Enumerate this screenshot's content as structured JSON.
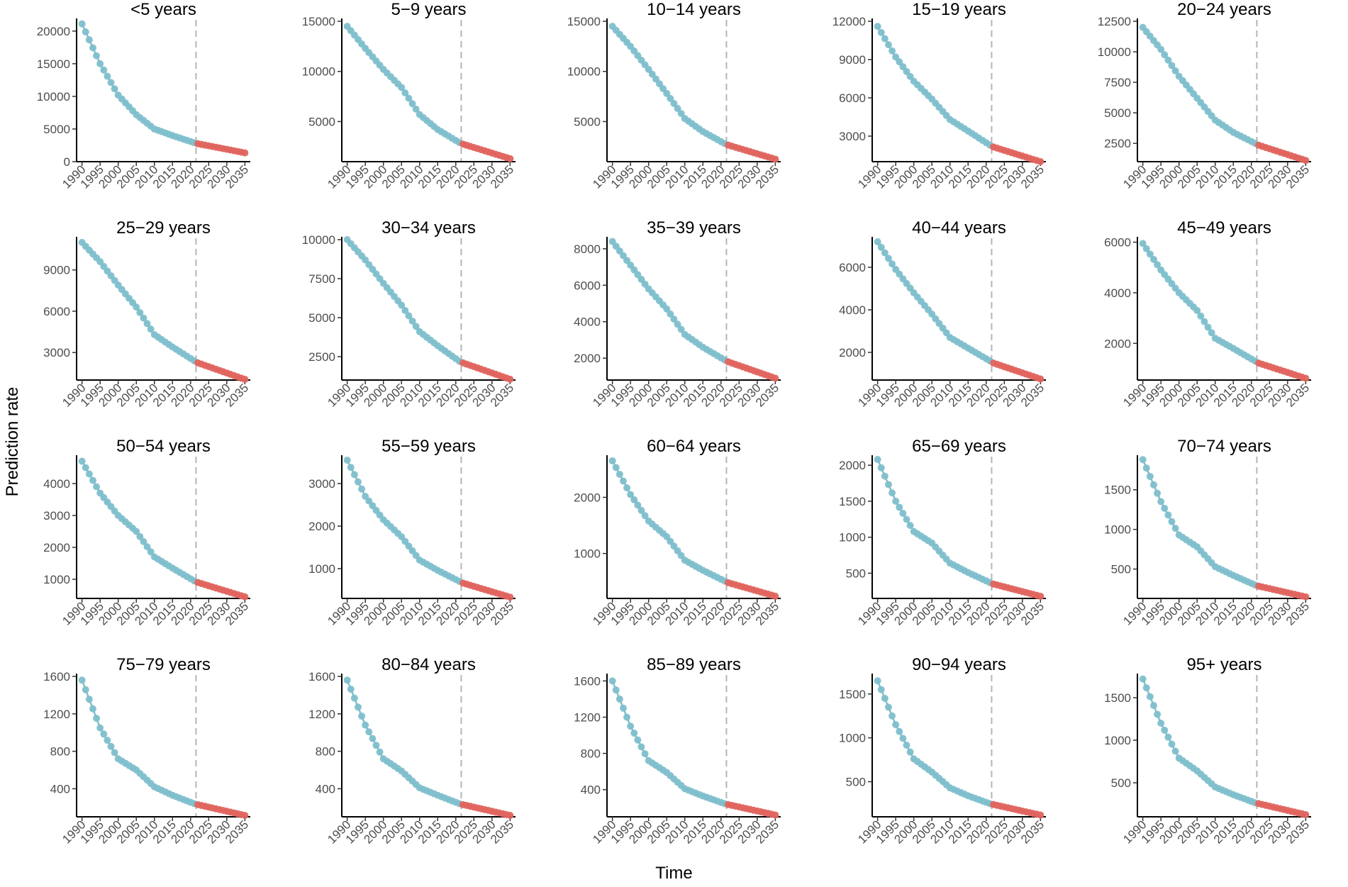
{
  "figure": {
    "ylabel": "Prediction rate",
    "xlabel": "Time",
    "colors": {
      "observed": "#7fbfcc",
      "predicted": "#e0645e",
      "reference_line": "#b5b5b5",
      "axis": "#000000"
    },
    "x_ticks": [
      1990,
      1995,
      2000,
      2005,
      2010,
      2015,
      2020,
      2025,
      2030,
      2035
    ],
    "reference_year": 2021.5
  },
  "chart_data": [
    {
      "type": "scatter",
      "title": "<5 years",
      "ylim": [
        0,
        21500
      ],
      "yticks": [
        0,
        5000,
        10000,
        15000,
        20000
      ],
      "observed_end": 2021,
      "predicted_end": 2035,
      "anchors": [
        [
          1990,
          21100
        ],
        [
          1995,
          15000
        ],
        [
          2000,
          10200
        ],
        [
          2005,
          7200
        ],
        [
          2010,
          5000
        ],
        [
          2015,
          4000
        ],
        [
          2021,
          2900
        ],
        [
          2022,
          2750
        ],
        [
          2035,
          1350
        ]
      ]
    },
    {
      "type": "scatter",
      "title": "5−9 years",
      "ylim": [
        1000,
        15000
      ],
      "yticks": [
        5000,
        10000,
        15000
      ],
      "observed_end": 2021,
      "predicted_end": 2035,
      "anchors": [
        [
          1990,
          14500
        ],
        [
          1995,
          12300
        ],
        [
          2000,
          10200
        ],
        [
          2005,
          8400
        ],
        [
          2010,
          5700
        ],
        [
          2015,
          4200
        ],
        [
          2021,
          2900
        ],
        [
          2022,
          2750
        ],
        [
          2035,
          1300
        ]
      ]
    },
    {
      "type": "scatter",
      "title": "10−14 years",
      "ylim": [
        1000,
        15000
      ],
      "yticks": [
        5000,
        10000,
        15000
      ],
      "observed_end": 2021,
      "predicted_end": 2035,
      "anchors": [
        [
          1990,
          14500
        ],
        [
          1995,
          12500
        ],
        [
          2000,
          10200
        ],
        [
          2005,
          7800
        ],
        [
          2010,
          5300
        ],
        [
          2015,
          4000
        ],
        [
          2021,
          2800
        ],
        [
          2022,
          2650
        ],
        [
          2035,
          1250
        ]
      ]
    },
    {
      "type": "scatter",
      "title": "15−19 years",
      "ylim": [
        1000,
        12000
      ],
      "yticks": [
        3000,
        6000,
        9000,
        12000
      ],
      "observed_end": 2021,
      "predicted_end": 2035,
      "anchors": [
        [
          1990,
          11600
        ],
        [
          1995,
          9200
        ],
        [
          2000,
          7300
        ],
        [
          2005,
          5900
        ],
        [
          2010,
          4300
        ],
        [
          2015,
          3400
        ],
        [
          2021,
          2300
        ],
        [
          2022,
          2150
        ],
        [
          2035,
          1000
        ]
      ]
    },
    {
      "type": "scatter",
      "title": "20−24 years",
      "ylim": [
        1000,
        12500
      ],
      "yticks": [
        2500,
        5000,
        7500,
        10000,
        12500
      ],
      "observed_end": 2021,
      "predicted_end": 2035,
      "anchors": [
        [
          1990,
          12000
        ],
        [
          1995,
          10200
        ],
        [
          2000,
          8000
        ],
        [
          2005,
          6200
        ],
        [
          2010,
          4400
        ],
        [
          2015,
          3400
        ],
        [
          2021,
          2500
        ],
        [
          2022,
          2350
        ],
        [
          2035,
          1100
        ]
      ]
    },
    {
      "type": "scatter",
      "title": "25−29 years",
      "ylim": [
        1000,
        11200
      ],
      "yticks": [
        3000,
        6000,
        9000
      ],
      "observed_end": 2021,
      "predicted_end": 2035,
      "anchors": [
        [
          1990,
          11000
        ],
        [
          1995,
          9600
        ],
        [
          2000,
          7900
        ],
        [
          2005,
          6300
        ],
        [
          2010,
          4300
        ],
        [
          2015,
          3400
        ],
        [
          2021,
          2400
        ],
        [
          2022,
          2250
        ],
        [
          2035,
          1050
        ]
      ]
    },
    {
      "type": "scatter",
      "title": "30−34 years",
      "ylim": [
        1000,
        10000
      ],
      "yticks": [
        2500,
        5000,
        7500,
        10000
      ],
      "observed_end": 2021,
      "predicted_end": 2035,
      "anchors": [
        [
          1990,
          10000
        ],
        [
          1995,
          8700
        ],
        [
          2000,
          7200
        ],
        [
          2005,
          5800
        ],
        [
          2010,
          4100
        ],
        [
          2015,
          3200
        ],
        [
          2021,
          2200
        ],
        [
          2022,
          2100
        ],
        [
          2035,
          1050
        ]
      ]
    },
    {
      "type": "scatter",
      "title": "35−39 years",
      "ylim": [
        800,
        8500
      ],
      "yticks": [
        2000,
        4000,
        6000,
        8000
      ],
      "observed_end": 2021,
      "predicted_end": 2035,
      "anchors": [
        [
          1990,
          8400
        ],
        [
          1995,
          7100
        ],
        [
          2000,
          5800
        ],
        [
          2005,
          4700
        ],
        [
          2010,
          3300
        ],
        [
          2015,
          2600
        ],
        [
          2021,
          1900
        ],
        [
          2022,
          1800
        ],
        [
          2035,
          900
        ]
      ]
    },
    {
      "type": "scatter",
      "title": "40−44 years",
      "ylim": [
        700,
        7300
      ],
      "yticks": [
        2000,
        4000,
        6000
      ],
      "observed_end": 2021,
      "predicted_end": 2035,
      "anchors": [
        [
          1990,
          7200
        ],
        [
          1995,
          5900
        ],
        [
          2000,
          4800
        ],
        [
          2005,
          3800
        ],
        [
          2010,
          2700
        ],
        [
          2015,
          2200
        ],
        [
          2021,
          1600
        ],
        [
          2022,
          1500
        ],
        [
          2035,
          750
        ]
      ]
    },
    {
      "type": "scatter",
      "title": "45−49 years",
      "ylim": [
        550,
        6100
      ],
      "yticks": [
        2000,
        4000,
        6000
      ],
      "observed_end": 2021,
      "predicted_end": 2035,
      "anchors": [
        [
          1990,
          5950
        ],
        [
          1995,
          4900
        ],
        [
          2000,
          4000
        ],
        [
          2005,
          3300
        ],
        [
          2010,
          2200
        ],
        [
          2015,
          1800
        ],
        [
          2021,
          1300
        ],
        [
          2022,
          1220
        ],
        [
          2035,
          620
        ]
      ]
    },
    {
      "type": "scatter",
      "title": "50−54 years",
      "ylim": [
        400,
        4800
      ],
      "yticks": [
        1000,
        2000,
        3000,
        4000
      ],
      "observed_end": 2021,
      "predicted_end": 2035,
      "anchors": [
        [
          1990,
          4700
        ],
        [
          1995,
          3700
        ],
        [
          2000,
          3000
        ],
        [
          2005,
          2500
        ],
        [
          2010,
          1700
        ],
        [
          2015,
          1350
        ],
        [
          2021,
          950
        ],
        [
          2022,
          900
        ],
        [
          2035,
          450
        ]
      ]
    },
    {
      "type": "scatter",
      "title": "55−59 years",
      "ylim": [
        300,
        3600
      ],
      "yticks": [
        1000,
        2000,
        3000
      ],
      "observed_end": 2021,
      "predicted_end": 2035,
      "anchors": [
        [
          1990,
          3550
        ],
        [
          1995,
          2700
        ],
        [
          2000,
          2150
        ],
        [
          2005,
          1750
        ],
        [
          2010,
          1200
        ],
        [
          2015,
          960
        ],
        [
          2021,
          700
        ],
        [
          2022,
          660
        ],
        [
          2035,
          330
        ]
      ]
    },
    {
      "type": "scatter",
      "title": "60−64 years",
      "ylim": [
        200,
        2700
      ],
      "yticks": [
        1000,
        2000
      ],
      "observed_end": 2021,
      "predicted_end": 2035,
      "anchors": [
        [
          1990,
          2650
        ],
        [
          1995,
          2050
        ],
        [
          2000,
          1580
        ],
        [
          2005,
          1300
        ],
        [
          2010,
          880
        ],
        [
          2015,
          700
        ],
        [
          2021,
          510
        ],
        [
          2022,
          480
        ],
        [
          2035,
          240
        ]
      ]
    },
    {
      "type": "scatter",
      "title": "65−69 years",
      "ylim": [
        150,
        2100
      ],
      "yticks": [
        500,
        1000,
        1500,
        2000
      ],
      "observed_end": 2021,
      "predicted_end": 2035,
      "anchors": [
        [
          1990,
          2080
        ],
        [
          1995,
          1500
        ],
        [
          2000,
          1080
        ],
        [
          2005,
          920
        ],
        [
          2010,
          640
        ],
        [
          2015,
          510
        ],
        [
          2021,
          370
        ],
        [
          2022,
          350
        ],
        [
          2035,
          180
        ]
      ]
    },
    {
      "type": "scatter",
      "title": "70−74 years",
      "ylim": [
        130,
        1900
      ],
      "yticks": [
        500,
        1000,
        1500
      ],
      "observed_end": 2021,
      "predicted_end": 2035,
      "anchors": [
        [
          1990,
          1880
        ],
        [
          1995,
          1350
        ],
        [
          2000,
          930
        ],
        [
          2005,
          780
        ],
        [
          2010,
          530
        ],
        [
          2015,
          420
        ],
        [
          2021,
          300
        ],
        [
          2022,
          285
        ],
        [
          2035,
          150
        ]
      ]
    },
    {
      "type": "scatter",
      "title": "75−79 years",
      "ylim": [
        100,
        1600
      ],
      "yticks": [
        400,
        800,
        1200,
        1600
      ],
      "observed_end": 2021,
      "predicted_end": 2035,
      "anchors": [
        [
          1990,
          1560
        ],
        [
          1995,
          1050
        ],
        [
          2000,
          720
        ],
        [
          2005,
          600
        ],
        [
          2010,
          420
        ],
        [
          2015,
          330
        ],
        [
          2021,
          240
        ],
        [
          2022,
          230
        ],
        [
          2035,
          115
        ]
      ]
    },
    {
      "type": "scatter",
      "title": "80−84 years",
      "ylim": [
        100,
        1600
      ],
      "yticks": [
        400,
        800,
        1200,
        1600
      ],
      "observed_end": 2021,
      "predicted_end": 2035,
      "anchors": [
        [
          1990,
          1560
        ],
        [
          1995,
          1080
        ],
        [
          2000,
          720
        ],
        [
          2005,
          590
        ],
        [
          2010,
          410
        ],
        [
          2015,
          330
        ],
        [
          2021,
          240
        ],
        [
          2022,
          230
        ],
        [
          2035,
          115
        ]
      ]
    },
    {
      "type": "scatter",
      "title": "85−89 years",
      "ylim": [
        100,
        1650
      ],
      "yticks": [
        400,
        800,
        1200,
        1600
      ],
      "observed_end": 2021,
      "predicted_end": 2035,
      "anchors": [
        [
          1990,
          1600
        ],
        [
          1995,
          1100
        ],
        [
          2000,
          720
        ],
        [
          2005,
          590
        ],
        [
          2010,
          410
        ],
        [
          2015,
          330
        ],
        [
          2021,
          245
        ],
        [
          2022,
          235
        ],
        [
          2035,
          120
        ]
      ]
    },
    {
      "type": "scatter",
      "title": "90−94 years",
      "ylim": [
        100,
        1700
      ],
      "yticks": [
        500,
        1000,
        1500
      ],
      "observed_end": 2021,
      "predicted_end": 2035,
      "anchors": [
        [
          1990,
          1650
        ],
        [
          1995,
          1150
        ],
        [
          2000,
          760
        ],
        [
          2005,
          610
        ],
        [
          2010,
          430
        ],
        [
          2015,
          340
        ],
        [
          2021,
          250
        ],
        [
          2022,
          240
        ],
        [
          2035,
          120
        ]
      ]
    },
    {
      "type": "scatter",
      "title": "95+ years",
      "ylim": [
        100,
        1750
      ],
      "yticks": [
        500,
        1000,
        1500
      ],
      "observed_end": 2021,
      "predicted_end": 2035,
      "anchors": [
        [
          1990,
          1720
        ],
        [
          1995,
          1200
        ],
        [
          2000,
          790
        ],
        [
          2005,
          640
        ],
        [
          2010,
          450
        ],
        [
          2015,
          360
        ],
        [
          2021,
          265
        ],
        [
          2022,
          255
        ],
        [
          2035,
          125
        ]
      ]
    }
  ]
}
